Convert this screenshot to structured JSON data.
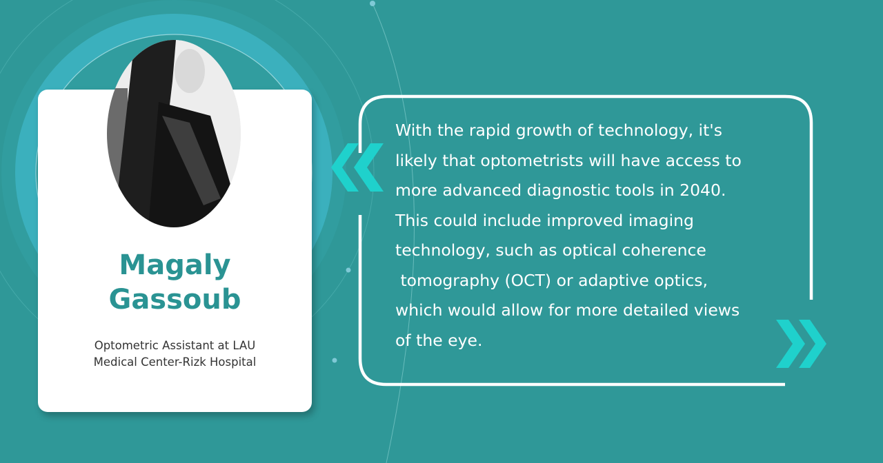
{
  "colors": {
    "background": "#2f9898",
    "accent": "#1fd1cc",
    "name": "#2a9393",
    "card": "#ffffff"
  },
  "profile": {
    "name_line1": "Magaly",
    "name_line2": "Gassoub",
    "role_line1": "Optometric Assistant at LAU",
    "role_line2": "Medical Center-Rizk Hospital"
  },
  "quote": {
    "lines": [
      "With the rapid growth of technology, it's",
      "likely that optometrists will have access to",
      "more advanced diagnostic tools in 2040.",
      "This could include improved imaging",
      "technology, such as optical coherence",
      " tomography (OCT) or adaptive optics,",
      "which would allow for more detailed views",
      "of the eye."
    ]
  },
  "icons": {
    "open_quote": "double-chevron-left",
    "close_quote": "double-chevron-right"
  }
}
